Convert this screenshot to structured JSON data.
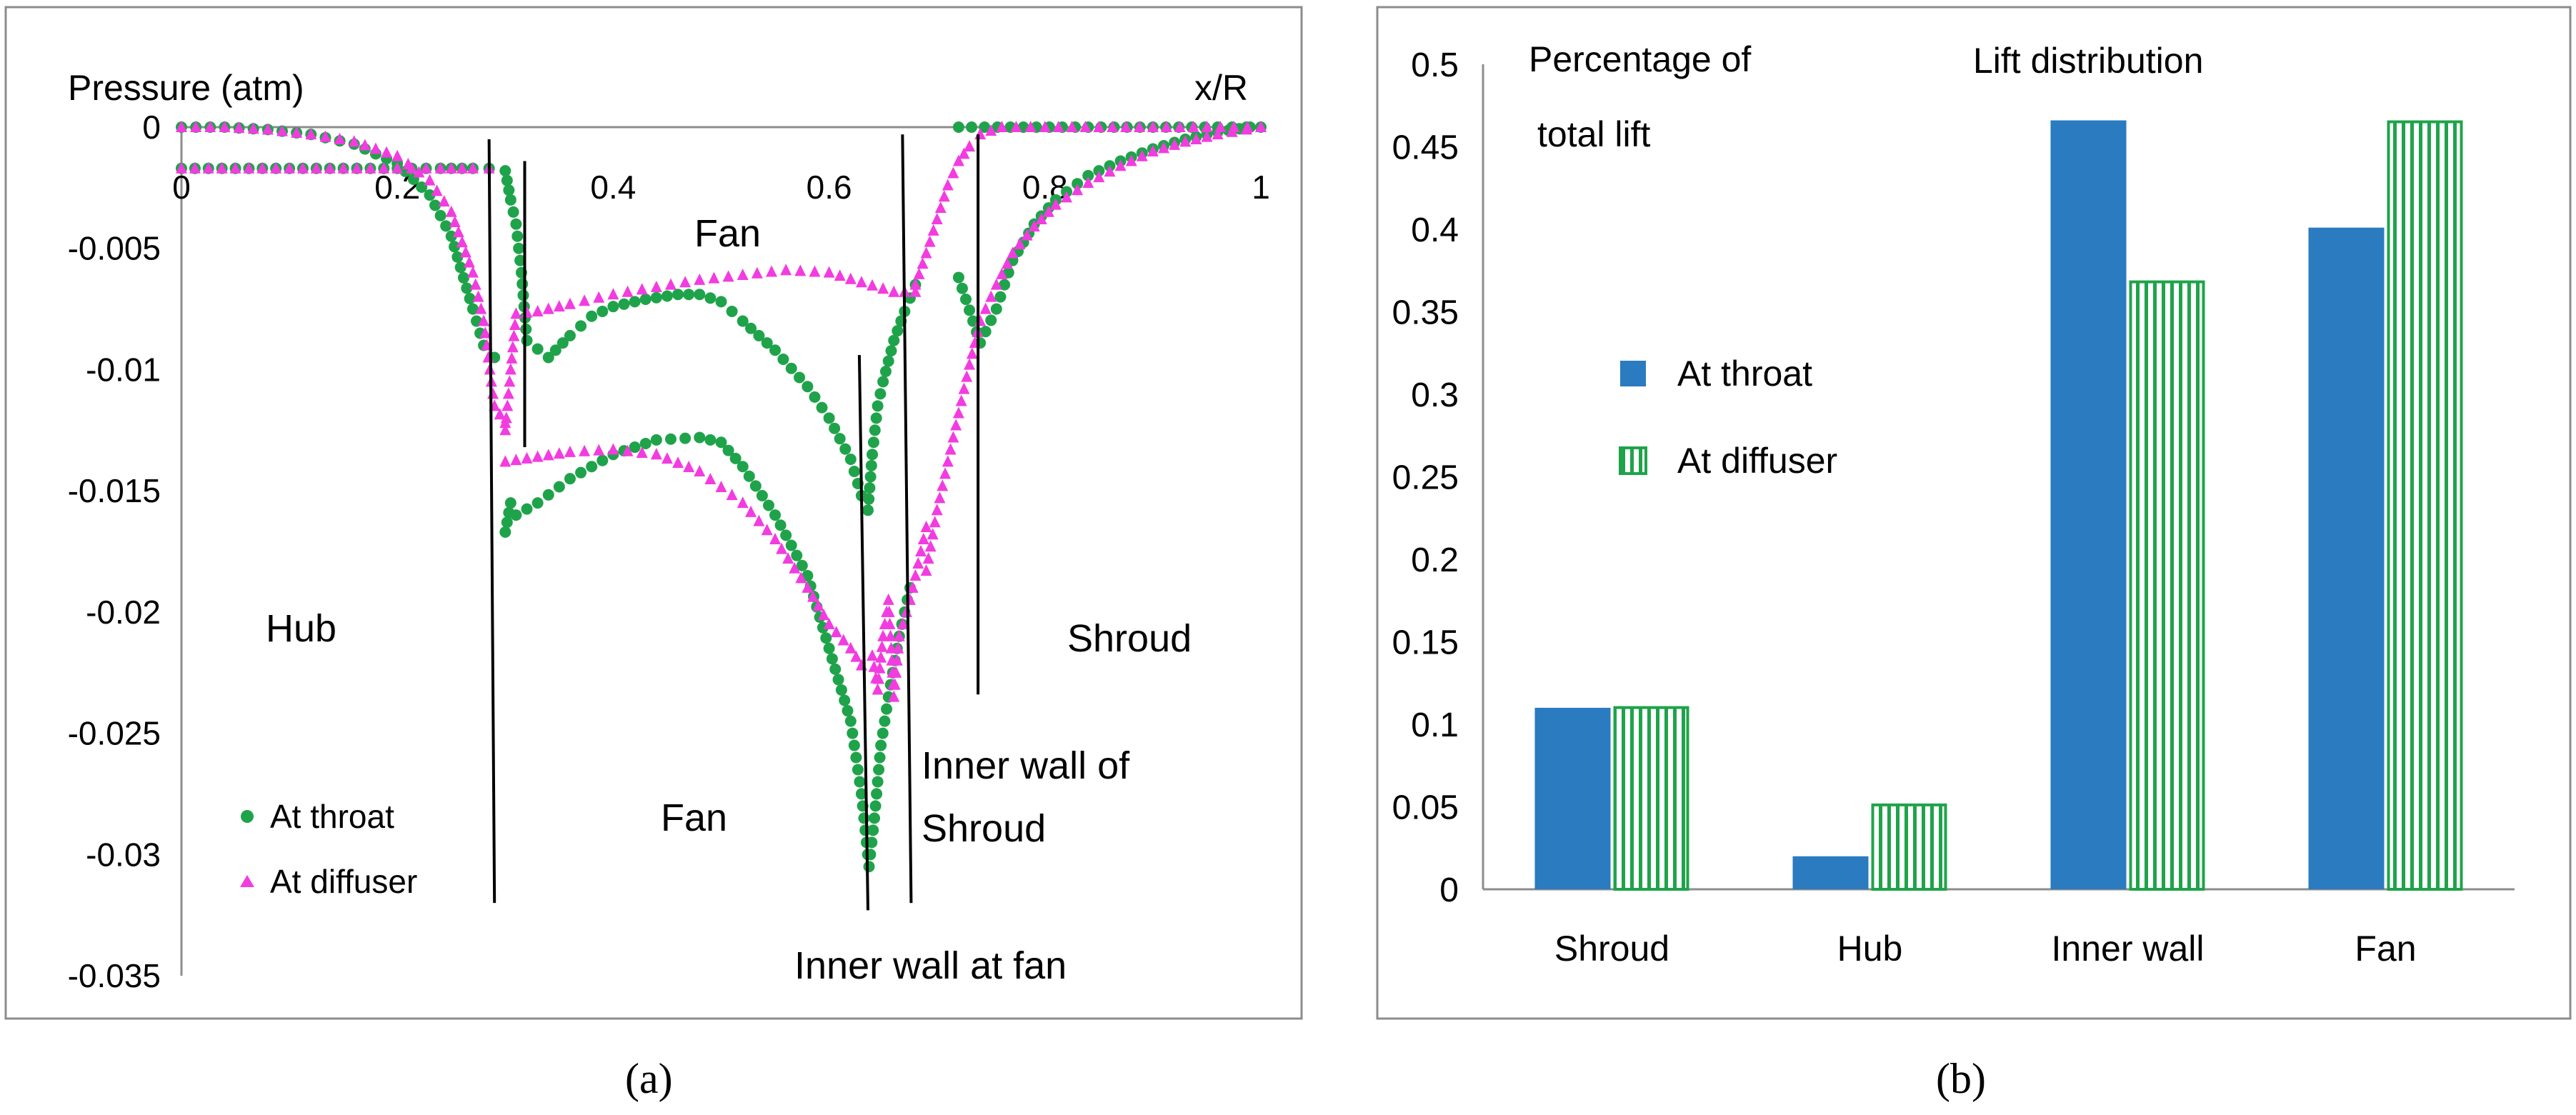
{
  "chart_data": [
    {
      "type": "scatter",
      "panel_label": "(a)",
      "ylabel": "Pressure (atm)",
      "xlabel": "x/R",
      "xlim": [
        0,
        1
      ],
      "ylim": [
        -0.035,
        0
      ],
      "x_ticks": [
        "0",
        "0.2",
        "0.4",
        "0.6",
        "0.8",
        "1"
      ],
      "y_ticks": [
        "0",
        "-0.005",
        "-0.01",
        "-0.015",
        "-0.02",
        "-0.025",
        "-0.03",
        "-0.035"
      ],
      "region_labels": {
        "hub": "Hub",
        "fan_upper": "Fan",
        "fan_lower": "Fan",
        "shroud": "Shroud",
        "inner_wall_shroud_line1": "Inner wall of",
        "inner_wall_shroud_line2": "Shroud",
        "inner_wall_fan": "Inner wall at fan"
      },
      "divider_lines": [
        {
          "x1": 0.285,
          "y1": -0.0005,
          "x2": 0.29,
          "y2": -0.032
        },
        {
          "x1": 0.318,
          "y1": -0.0014,
          "x2": 0.318,
          "y2": -0.0132
        },
        {
          "x1": 0.628,
          "y1": -0.0094,
          "x2": 0.636,
          "y2": -0.0323
        },
        {
          "x1": 0.668,
          "y1": -0.0003,
          "x2": 0.676,
          "y2": -0.032
        },
        {
          "x1": 0.738,
          "y1": -0.0003,
          "x2": 0.738,
          "y2": -0.0234
        }
      ],
      "series": [
        {
          "name": "At throat",
          "marker": "circle",
          "color": "#1fa34a",
          "curves": [
            [
              [
                0.0,
                -0.0017
              ],
              [
                0.05,
                -0.0017
              ],
              [
                0.1,
                -0.0017
              ],
              [
                0.15,
                -0.0017
              ],
              [
                0.2,
                -0.0017
              ],
              [
                0.24,
                -0.0017
              ],
              [
                0.27,
                -0.0017
              ],
              [
                0.285,
                -0.0017
              ]
            ],
            [
              [
                0.0,
                0.0
              ],
              [
                0.04,
                0.0
              ],
              [
                0.08,
                -0.0001
              ],
              [
                0.12,
                -0.0003
              ],
              [
                0.16,
                -0.0007
              ],
              [
                0.2,
                -0.0015
              ],
              [
                0.23,
                -0.0028
              ],
              [
                0.25,
                -0.0045
              ],
              [
                0.27,
                -0.0075
              ],
              [
                0.28,
                -0.009
              ],
              [
                0.29,
                -0.0095
              ]
            ],
            [
              [
                0.3,
                -0.0018
              ],
              [
                0.305,
                -0.003
              ],
              [
                0.31,
                -0.004
              ],
              [
                0.315,
                -0.006
              ],
              [
                0.32,
                -0.0088
              ],
              [
                0.34,
                -0.0095
              ],
              [
                0.36,
                -0.0086
              ],
              [
                0.38,
                -0.0078
              ],
              [
                0.4,
                -0.0074
              ],
              [
                0.43,
                -0.0071
              ],
              [
                0.46,
                -0.0069
              ],
              [
                0.48,
                -0.0069
              ],
              [
                0.5,
                -0.0072
              ],
              [
                0.52,
                -0.008
              ],
              [
                0.55,
                -0.0092
              ],
              [
                0.58,
                -0.0107
              ],
              [
                0.6,
                -0.012
              ],
              [
                0.62,
                -0.0137
              ],
              [
                0.63,
                -0.0152
              ],
              [
                0.636,
                -0.0158
              ],
              [
                0.64,
                -0.0135
              ],
              [
                0.645,
                -0.0115
              ],
              [
                0.65,
                -0.0105
              ],
              [
                0.66,
                -0.0088
              ],
              [
                0.67,
                -0.0076
              ],
              [
                0.68,
                -0.0065
              ]
            ],
            [
              [
                0.3,
                -0.0167
              ],
              [
                0.305,
                -0.0155
              ],
              [
                0.31,
                -0.016
              ],
              [
                0.33,
                -0.0155
              ],
              [
                0.36,
                -0.0145
              ],
              [
                0.4,
                -0.0135
              ],
              [
                0.44,
                -0.0129
              ],
              [
                0.48,
                -0.0128
              ],
              [
                0.5,
                -0.013
              ],
              [
                0.52,
                -0.014
              ],
              [
                0.55,
                -0.016
              ],
              [
                0.58,
                -0.0185
              ],
              [
                0.6,
                -0.0215
              ],
              [
                0.62,
                -0.0245
              ],
              [
                0.63,
                -0.0275
              ],
              [
                0.637,
                -0.0305
              ],
              [
                0.642,
                -0.0285
              ],
              [
                0.648,
                -0.0255
              ],
              [
                0.655,
                -0.0235
              ],
              [
                0.665,
                -0.021
              ],
              [
                0.675,
                -0.019
              ]
            ],
            [
              [
                0.72,
                -0.0062
              ],
              [
                0.74,
                -0.0089
              ],
              [
                0.755,
                -0.0075
              ],
              [
                0.77,
                -0.0055
              ],
              [
                0.79,
                -0.004
              ],
              [
                0.81,
                -0.003
              ],
              [
                0.84,
                -0.002
              ],
              [
                0.87,
                -0.0014
              ],
              [
                0.9,
                -0.0009
              ],
              [
                0.93,
                -0.0005
              ],
              [
                0.96,
                -0.0002
              ],
              [
                0.99,
                0.0
              ]
            ],
            [
              [
                0.72,
                0.0
              ],
              [
                0.78,
                0.0
              ],
              [
                0.84,
                0.0
              ],
              [
                0.9,
                0.0
              ],
              [
                0.96,
                0.0
              ],
              [
                1.0,
                0.0
              ]
            ]
          ]
        },
        {
          "name": "At diffuser",
          "marker": "triangle",
          "color": "#f23ce0",
          "curves": [
            [
              [
                0.0,
                -0.0017
              ],
              [
                0.05,
                -0.0017
              ],
              [
                0.1,
                -0.0017
              ],
              [
                0.15,
                -0.0017
              ],
              [
                0.2,
                -0.0017
              ],
              [
                0.24,
                -0.0017
              ],
              [
                0.27,
                -0.0017
              ],
              [
                0.285,
                -0.0017
              ]
            ],
            [
              [
                0.0,
                0.0
              ],
              [
                0.04,
                0.0
              ],
              [
                0.08,
                -0.0001
              ],
              [
                0.12,
                -0.0003
              ],
              [
                0.16,
                -0.0006
              ],
              [
                0.2,
                -0.0012
              ],
              [
                0.23,
                -0.0022
              ],
              [
                0.25,
                -0.0035
              ],
              [
                0.27,
                -0.006
              ],
              [
                0.28,
                -0.008
              ],
              [
                0.29,
                -0.0115
              ],
              [
                0.3,
                -0.0122
              ]
            ],
            [
              [
                0.3,
                -0.0125
              ],
              [
                0.305,
                -0.01
              ],
              [
                0.31,
                -0.0077
              ],
              [
                0.33,
                -0.0076
              ],
              [
                0.36,
                -0.0073
              ],
              [
                0.4,
                -0.0069
              ],
              [
                0.44,
                -0.0066
              ],
              [
                0.48,
                -0.0063
              ],
              [
                0.52,
                -0.0061
              ],
              [
                0.56,
                -0.0059
              ],
              [
                0.6,
                -0.006
              ],
              [
                0.63,
                -0.0064
              ],
              [
                0.66,
                -0.0068
              ],
              [
                0.68,
                -0.0068
              ]
            ],
            [
              [
                0.3,
                -0.0138
              ],
              [
                0.33,
                -0.0136
              ],
              [
                0.36,
                -0.0134
              ],
              [
                0.4,
                -0.0133
              ],
              [
                0.44,
                -0.0135
              ],
              [
                0.48,
                -0.0142
              ],
              [
                0.52,
                -0.0155
              ],
              [
                0.55,
                -0.017
              ],
              [
                0.58,
                -0.019
              ],
              [
                0.6,
                -0.0205
              ],
              [
                0.62,
                -0.0215
              ],
              [
                0.63,
                -0.0222
              ],
              [
                0.64,
                -0.0218
              ],
              [
                0.645,
                -0.0232
              ],
              [
                0.65,
                -0.021
              ],
              [
                0.655,
                -0.0195
              ],
              [
                0.66,
                -0.0235
              ],
              [
                0.665,
                -0.021
              ],
              [
                0.675,
                -0.0195
              ],
              [
                0.69,
                -0.0165
              ]
            ],
            [
              [
                0.68,
                -0.0065
              ],
              [
                0.69,
                -0.0052
              ],
              [
                0.7,
                -0.0038
              ],
              [
                0.71,
                -0.0024
              ],
              [
                0.72,
                -0.0014
              ],
              [
                0.73,
                -0.0008
              ],
              [
                0.74,
                -0.0003
              ],
              [
                0.76,
                0.0
              ],
              [
                0.8,
                0.0
              ],
              [
                0.85,
                0.0
              ],
              [
                0.9,
                0.0
              ],
              [
                0.95,
                0.0
              ],
              [
                1.0,
                0.0
              ]
            ],
            [
              [
                0.69,
                -0.0183
              ],
              [
                0.7,
                -0.0158
              ],
              [
                0.71,
                -0.0138
              ],
              [
                0.72,
                -0.0118
              ],
              [
                0.73,
                -0.0098
              ],
              [
                0.74,
                -0.008
              ],
              [
                0.755,
                -0.0065
              ],
              [
                0.77,
                -0.0052
              ],
              [
                0.79,
                -0.0041
              ],
              [
                0.81,
                -0.0032
              ],
              [
                0.84,
                -0.0023
              ],
              [
                0.87,
                -0.0016
              ],
              [
                0.9,
                -0.001
              ],
              [
                0.93,
                -0.0006
              ],
              [
                0.96,
                -0.0003
              ],
              [
                1.0,
                0.0
              ]
            ]
          ]
        }
      ],
      "legend": [
        "At throat",
        "At diffuser"
      ]
    },
    {
      "type": "bar",
      "panel_label": "(b)",
      "title": "Lift distribution",
      "ylabel_line1": "Percentage of",
      "ylabel_line2": "total lift",
      "categories": [
        "Shroud",
        "Hub",
        "Inner wall",
        "Fan"
      ],
      "ylim": [
        0,
        0.5
      ],
      "y_ticks": [
        "0",
        "0.05",
        "0.1",
        "0.15",
        "0.2",
        "0.25",
        "0.3",
        "0.35",
        "0.4",
        "0.45",
        "0.5"
      ],
      "series": [
        {
          "name": "At throat",
          "color": "#2a7bbf",
          "values": [
            0.11,
            0.02,
            0.466,
            0.401
          ]
        },
        {
          "name": "At diffuser",
          "color": "#1fa34a",
          "values": [
            0.111,
            0.052,
            0.369,
            0.466
          ]
        }
      ]
    }
  ]
}
